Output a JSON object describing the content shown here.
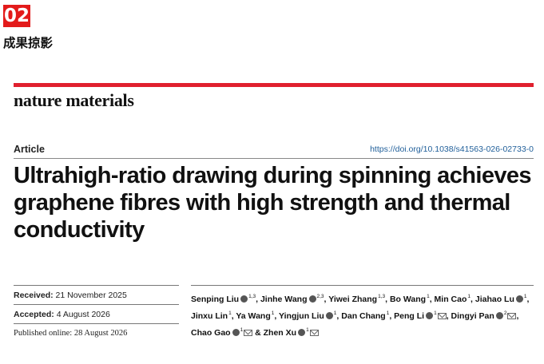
{
  "section": {
    "number": "02",
    "title": "成果掠影"
  },
  "journal": "nature materials",
  "article_type": "Article",
  "doi": "https://doi.org/10.1038/s41563-026-02733-0",
  "title": "Ultrahigh-ratio drawing during spinning achieves graphene fibres with high strength and thermal conductivity",
  "dates": {
    "received_label": "Received:",
    "received": "21 November 2025",
    "accepted_label": "Accepted:",
    "accepted": "4 August 2026",
    "published": "Published online: 28 August 2026"
  },
  "authors": [
    {
      "name": "Senping Liu",
      "sup": "1,3",
      "orcid": true,
      "mail": false
    },
    {
      "name": "Jinhe Wang",
      "sup": "2,3",
      "orcid": true,
      "mail": false
    },
    {
      "name": "Yiwei Zhang",
      "sup": "1,3",
      "orcid": false,
      "mail": false
    },
    {
      "name": "Bo Wang",
      "sup": "1",
      "orcid": false,
      "mail": false
    },
    {
      "name": "Min Cao",
      "sup": "1",
      "orcid": false,
      "mail": false
    },
    {
      "name": "Jiahao Lu",
      "sup": "1",
      "orcid": true,
      "mail": false
    },
    {
      "name": "Jinxu Lin",
      "sup": "1",
      "orcid": false,
      "mail": false
    },
    {
      "name": "Ya Wang",
      "sup": "1",
      "orcid": false,
      "mail": false
    },
    {
      "name": "Yingjun Liu",
      "sup": "1",
      "orcid": true,
      "mail": false
    },
    {
      "name": "Dan Chang",
      "sup": "1",
      "orcid": false,
      "mail": false
    },
    {
      "name": "Peng Li",
      "sup": "1",
      "orcid": true,
      "mail": true
    },
    {
      "name": "Dingyi Pan",
      "sup": "2",
      "orcid": true,
      "mail": true
    },
    {
      "name": "Chao Gao",
      "sup": "1",
      "orcid": true,
      "mail": true
    },
    {
      "name": "Zhen Xu",
      "sup": "1",
      "orcid": true,
      "mail": true
    }
  ]
}
